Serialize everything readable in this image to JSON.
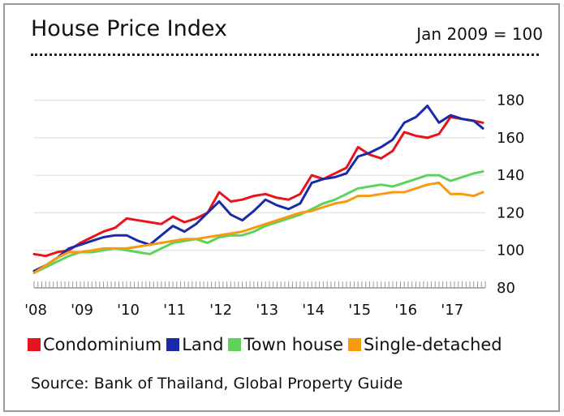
{
  "header": {
    "title": "House Price Index",
    "base_note": "Jan 2009 = 100"
  },
  "source": "Source: Bank of Thailand, Global Property Guide",
  "chart_data": {
    "type": "line",
    "title": "House Price Index",
    "subtitle": "Jan 2009 = 100",
    "xlabel": "",
    "ylabel": "",
    "ylim": [
      80,
      185
    ],
    "xlim": [
      2008.0,
      2017.75
    ],
    "y_ticks": [
      80,
      100,
      120,
      140,
      160,
      180
    ],
    "x_ticks": [
      {
        "label": "'08",
        "value": 2008.0
      },
      {
        "label": "'09",
        "value": 2009.0
      },
      {
        "label": "'10",
        "value": 2010.0
      },
      {
        "label": "'11",
        "value": 2011.0
      },
      {
        "label": "'12",
        "value": 2012.0
      },
      {
        "label": "'13",
        "value": 2013.0
      },
      {
        "label": "'14",
        "value": 2014.0
      },
      {
        "label": "'15",
        "value": 2015.0
      },
      {
        "label": "'16",
        "value": 2016.0
      },
      {
        "label": "'17",
        "value": 2017.0
      }
    ],
    "grid": true,
    "y_axis_side": "right",
    "legend_position": "bottom",
    "series": [
      {
        "name": "Condominium",
        "color": "#e8141b",
        "x": [
          2008.0,
          2008.25,
          2008.5,
          2008.75,
          2009.0,
          2009.25,
          2009.5,
          2009.75,
          2010.0,
          2010.25,
          2010.5,
          2010.75,
          2011.0,
          2011.25,
          2011.5,
          2011.75,
          2012.0,
          2012.25,
          2012.5,
          2012.75,
          2013.0,
          2013.25,
          2013.5,
          2013.75,
          2014.0,
          2014.25,
          2014.5,
          2014.75,
          2015.0,
          2015.25,
          2015.5,
          2015.75,
          2016.0,
          2016.25,
          2016.5,
          2016.75,
          2017.0,
          2017.25,
          2017.5,
          2017.7
        ],
        "y": [
          98,
          97,
          99,
          100,
          104,
          107,
          110,
          112,
          117,
          116,
          115,
          114,
          118,
          115,
          117,
          120,
          131,
          126,
          127,
          129,
          130,
          128,
          127,
          130,
          140,
          138,
          141,
          144,
          155,
          151,
          149,
          153,
          163,
          161,
          160,
          162,
          171,
          170,
          169,
          168
        ]
      },
      {
        "name": "Land",
        "color": "#1a2aa8",
        "x": [
          2008.0,
          2008.25,
          2008.5,
          2008.75,
          2009.0,
          2009.25,
          2009.5,
          2009.75,
          2010.0,
          2010.25,
          2010.5,
          2010.75,
          2011.0,
          2011.25,
          2011.5,
          2011.75,
          2012.0,
          2012.25,
          2012.5,
          2012.75,
          2013.0,
          2013.25,
          2013.5,
          2013.75,
          2014.0,
          2014.25,
          2014.5,
          2014.75,
          2015.0,
          2015.25,
          2015.5,
          2015.75,
          2016.0,
          2016.25,
          2016.5,
          2016.75,
          2017.0,
          2017.25,
          2017.5,
          2017.7
        ],
        "y": [
          89,
          92,
          96,
          101,
          103,
          105,
          107,
          108,
          108,
          105,
          103,
          108,
          113,
          110,
          114,
          120,
          126,
          119,
          116,
          121,
          127,
          124,
          122,
          125,
          136,
          138,
          139,
          141,
          150,
          152,
          155,
          159,
          168,
          171,
          177,
          168,
          172,
          170,
          169,
          165
        ]
      },
      {
        "name": "Town house",
        "color": "#5ed35b",
        "x": [
          2008.0,
          2008.25,
          2008.5,
          2008.75,
          2009.0,
          2009.25,
          2009.5,
          2009.75,
          2010.0,
          2010.25,
          2010.5,
          2010.75,
          2011.0,
          2011.25,
          2011.5,
          2011.75,
          2012.0,
          2012.25,
          2012.5,
          2012.75,
          2013.0,
          2013.25,
          2013.5,
          2013.75,
          2014.0,
          2014.25,
          2014.5,
          2014.75,
          2015.0,
          2015.25,
          2015.5,
          2015.75,
          2016.0,
          2016.25,
          2016.5,
          2016.75,
          2017.0,
          2017.25,
          2017.5,
          2017.7
        ],
        "y": [
          88,
          91,
          94,
          97,
          99,
          99,
          100,
          101,
          100,
          99,
          98,
          101,
          104,
          105,
          106,
          104,
          107,
          108,
          108,
          110,
          113,
          115,
          117,
          119,
          122,
          125,
          127,
          130,
          133,
          134,
          135,
          134,
          136,
          138,
          140,
          140,
          137,
          139,
          141,
          142
        ]
      },
      {
        "name": "Single-detached",
        "color": "#f79a12",
        "x": [
          2008.0,
          2008.25,
          2008.5,
          2008.75,
          2009.0,
          2009.25,
          2009.5,
          2009.75,
          2010.0,
          2010.25,
          2010.5,
          2010.75,
          2011.0,
          2011.25,
          2011.5,
          2011.75,
          2012.0,
          2012.25,
          2012.5,
          2012.75,
          2013.0,
          2013.25,
          2013.5,
          2013.75,
          2014.0,
          2014.25,
          2014.5,
          2014.75,
          2015.0,
          2015.25,
          2015.5,
          2015.75,
          2016.0,
          2016.25,
          2016.5,
          2016.75,
          2017.0,
          2017.25,
          2017.5,
          2017.7
        ],
        "y": [
          88,
          92,
          96,
          99,
          99,
          100,
          101,
          101,
          101,
          102,
          103,
          104,
          105,
          106,
          106,
          107,
          108,
          109,
          110,
          112,
          114,
          116,
          118,
          120,
          121,
          123,
          125,
          126,
          129,
          129,
          130,
          131,
          131,
          133,
          135,
          136,
          130,
          130,
          129,
          131
        ]
      }
    ]
  }
}
